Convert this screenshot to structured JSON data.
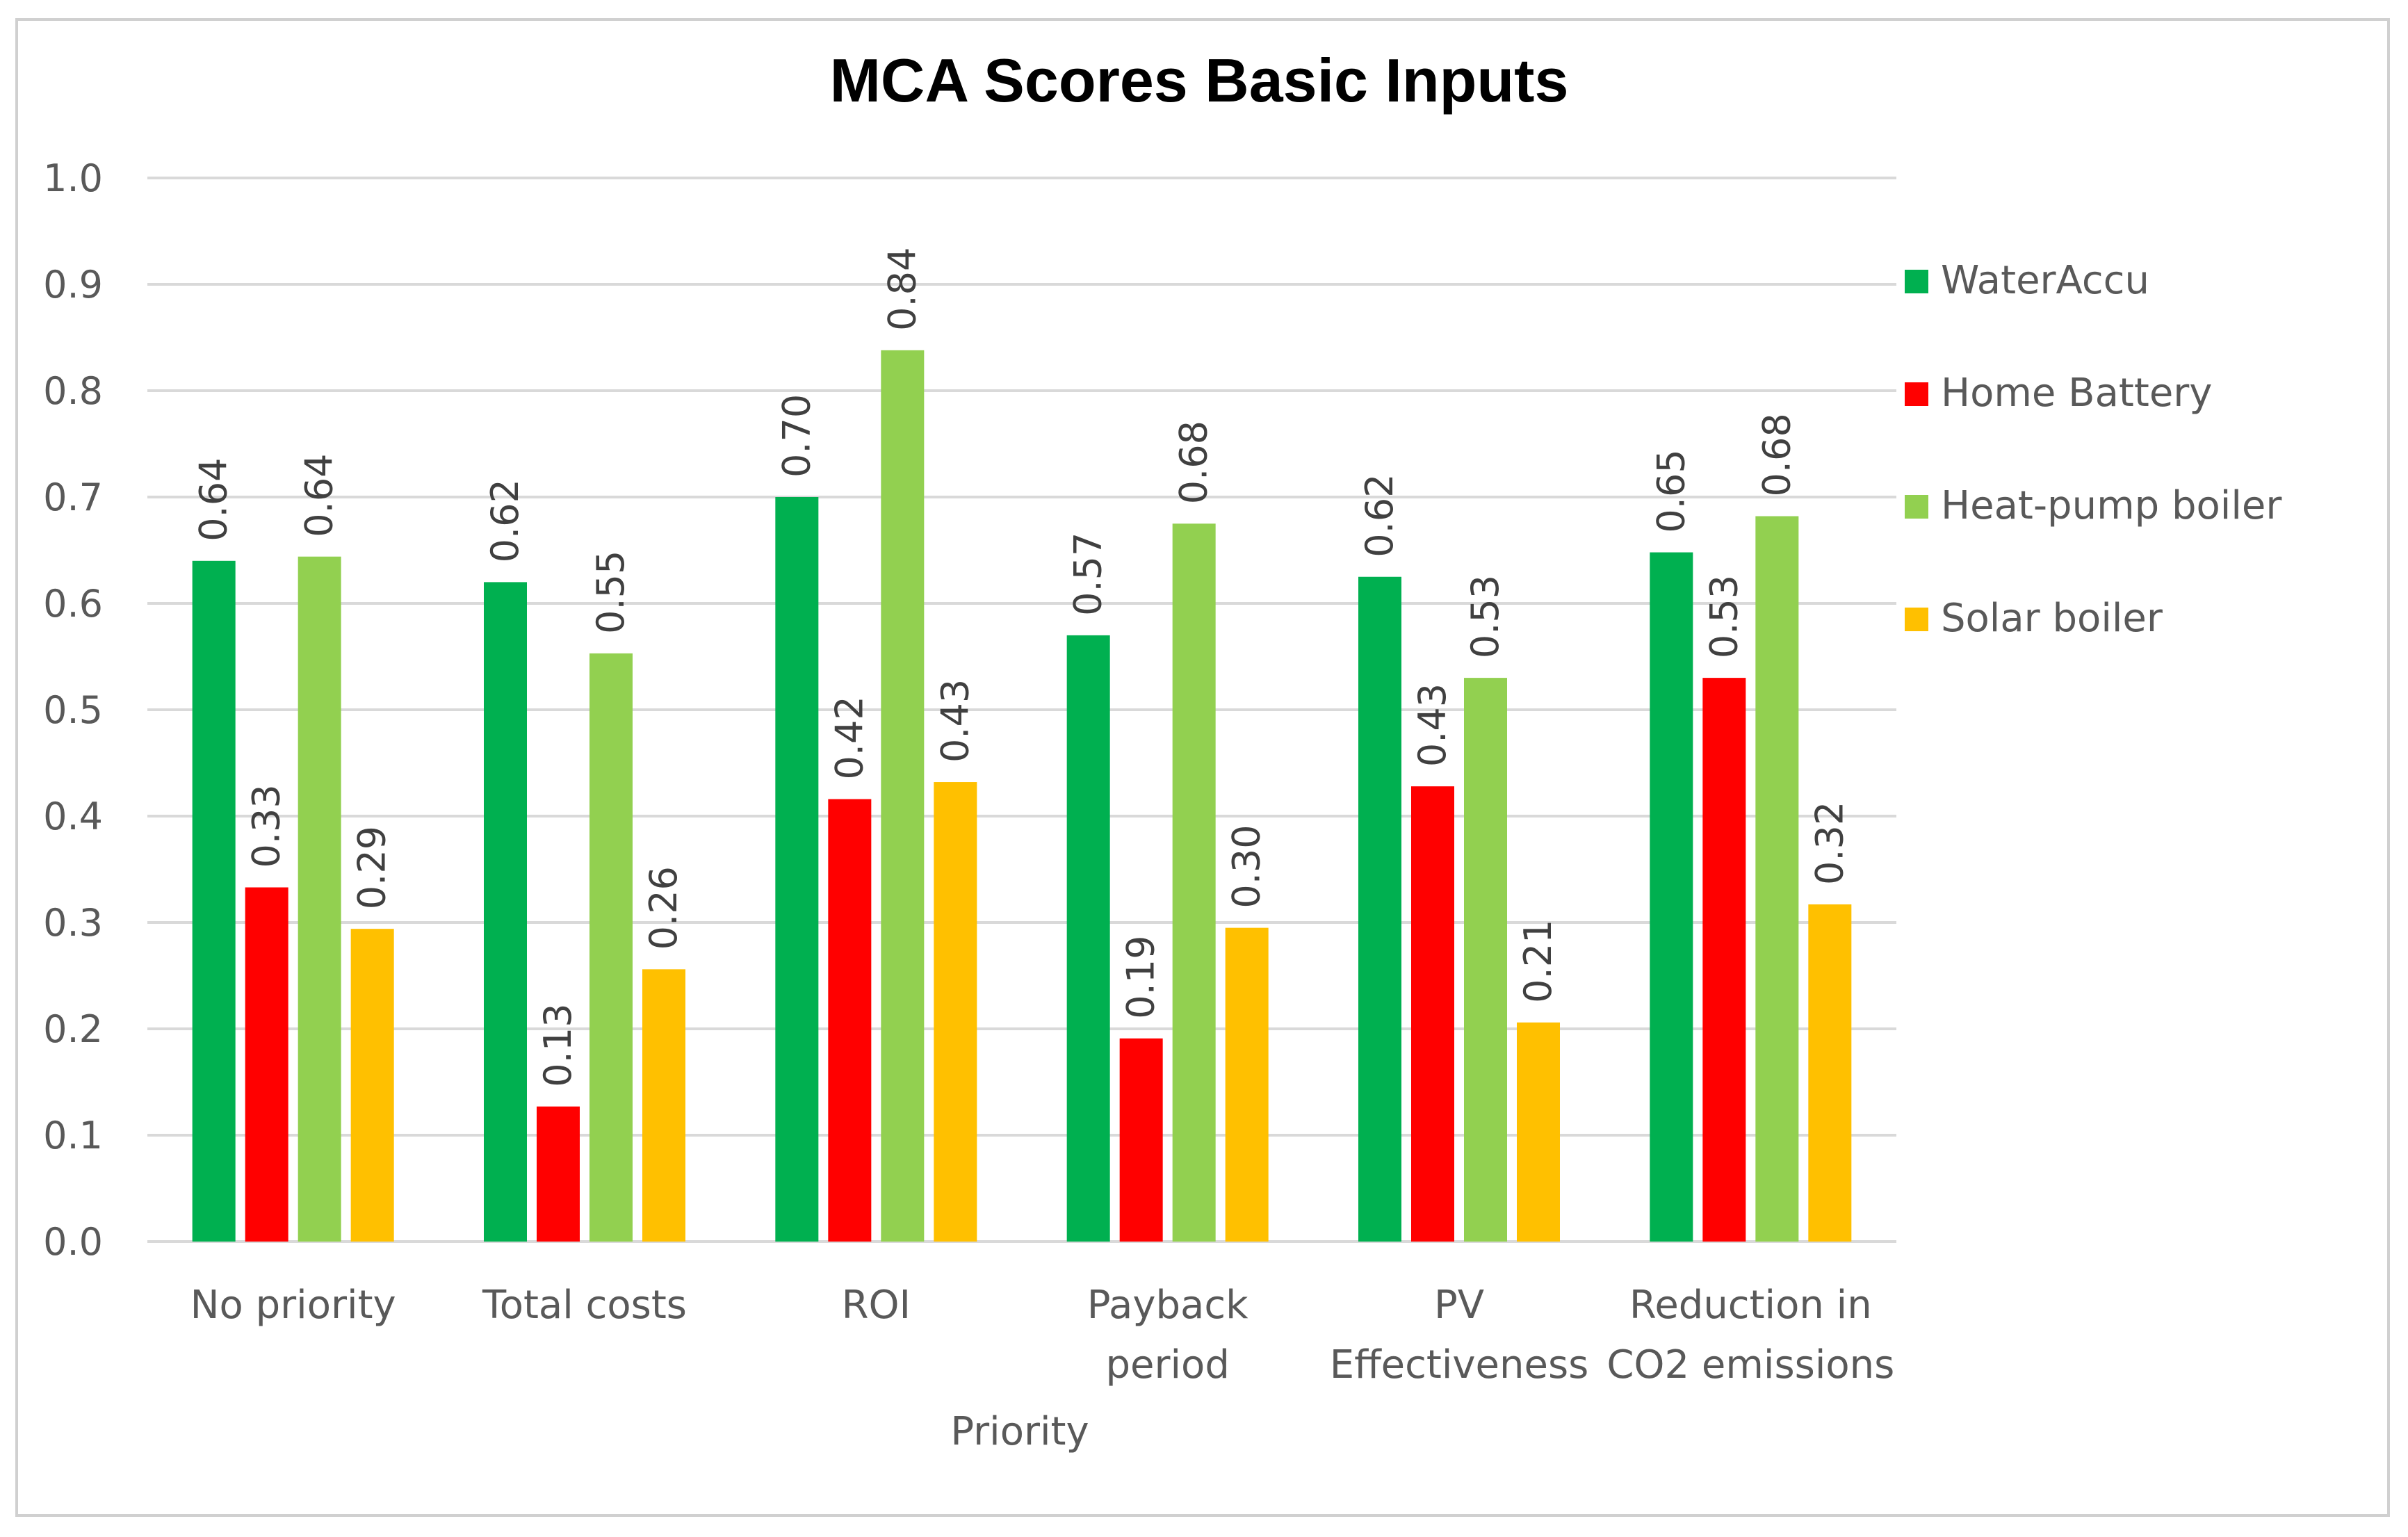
{
  "chart_data": {
    "type": "bar",
    "title": "MCA Scores Basic Inputs",
    "xlabel": "Priority",
    "ylabel": "",
    "ylim": [
      0,
      1.0
    ],
    "ytick_step": 0.1,
    "ytick_labels": [
      "0.0",
      "0.1",
      "0.2",
      "0.3",
      "0.4",
      "0.5",
      "0.6",
      "0.7",
      "0.8",
      "0.9",
      "1.0"
    ],
    "grid": true,
    "legend_position": "right",
    "categories": [
      [
        "No priority"
      ],
      [
        "Total costs"
      ],
      [
        "ROI"
      ],
      [
        "Payback",
        "period"
      ],
      [
        "PV",
        "Effectiveness"
      ],
      [
        "Reduction in",
        "CO2 emissions"
      ]
    ],
    "series": [
      {
        "name": "WaterAccu",
        "color": "#00b050",
        "values": [
          0.64,
          0.62,
          0.7,
          0.57,
          0.625,
          0.648
        ],
        "labels": [
          "0.64",
          "0.62",
          "0.70",
          "0.57",
          "0.62",
          "0.65"
        ]
      },
      {
        "name": "Home Battery",
        "color": "#ff0000",
        "values": [
          0.333,
          0.127,
          0.416,
          0.191,
          0.428,
          0.53
        ],
        "labels": [
          "0.33",
          "0.13",
          "0.42",
          "0.19",
          "0.43",
          "0.53"
        ]
      },
      {
        "name": "Heat-pump boiler",
        "color": "#92d050",
        "values": [
          0.644,
          0.553,
          0.838,
          0.675,
          0.53,
          0.682
        ],
        "labels": [
          "0.64",
          "0.55",
          "0.84",
          "0.68",
          "0.53",
          "0.68"
        ]
      },
      {
        "name": "Solar boiler",
        "color": "#ffc000",
        "values": [
          0.294,
          0.256,
          0.432,
          0.295,
          0.206,
          0.317
        ],
        "labels": [
          "0.29",
          "0.26",
          "0.43",
          "0.30",
          "0.21",
          "0.32"
        ]
      }
    ]
  }
}
